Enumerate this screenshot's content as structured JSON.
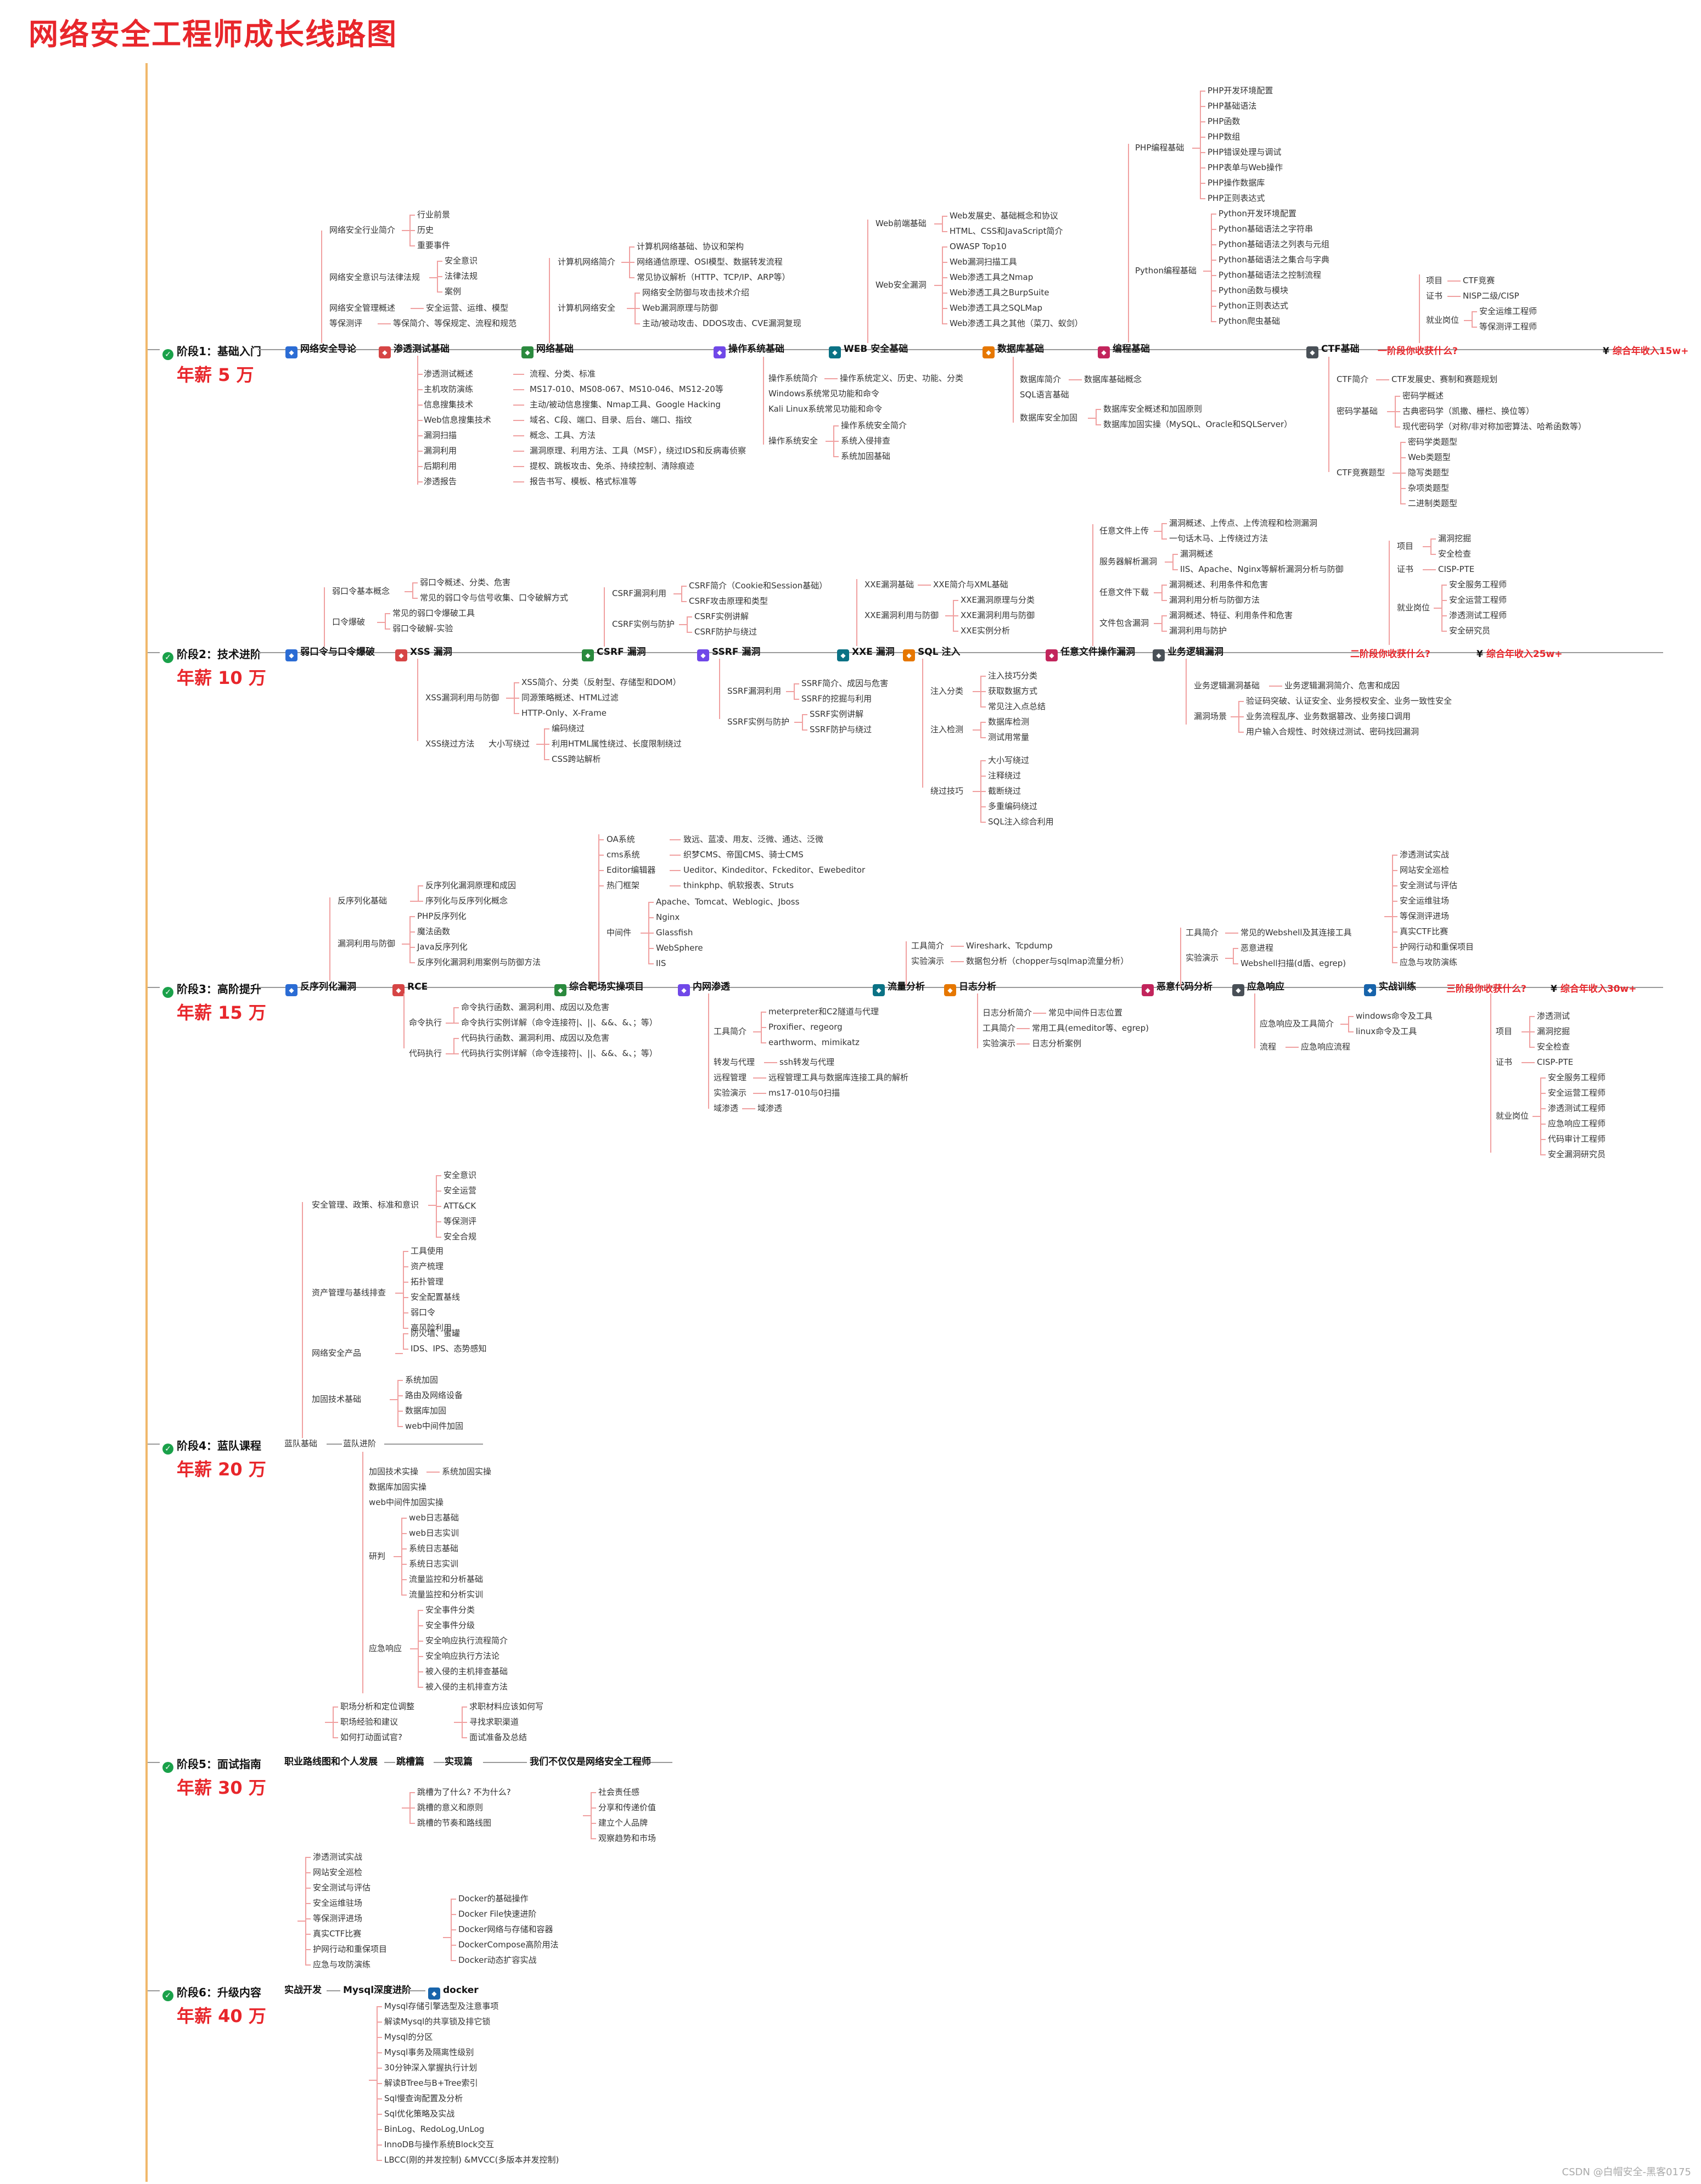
{
  "title": "网络安全工程师成长线路图",
  "watermark": "CSDN @白帽安全-黑客0175",
  "colors": {
    "accent": "#e8262b",
    "spine": "#f0b86b",
    "check": "#1aa14a"
  },
  "stages": [
    {
      "label": "阶段1：基础入门",
      "salary": "年薪 5 万"
    },
    {
      "label": "阶段2：技术进阶",
      "salary": "年薪 10 万"
    },
    {
      "label": "阶段3：高阶提升",
      "salary": "年薪 15 万"
    },
    {
      "label": "阶段4：蓝队课程",
      "salary": "年薪 20 万"
    },
    {
      "label": "阶段5：面试指南",
      "salary": "年薪 30 万"
    },
    {
      "label": "阶段6：升级内容",
      "salary": "年薪 40 万"
    }
  ],
  "s1": {
    "modules": [
      "网络安全导论",
      "渗透测试基础",
      "网络基础",
      "操作系统基础",
      "WEB 安全基础",
      "数据库基础",
      "编程基础",
      "CTF基础"
    ],
    "question": "一阶段你收获什么?",
    "pay": "综合年收入15w+",
    "intro": {
      "industry": "网络安全行业简介",
      "industry_items": [
        "行业前景",
        "历史",
        "重要事件"
      ],
      "law": "网络安全意识与法律法规",
      "law_items": [
        "安全意识",
        "法律法规",
        "案例"
      ],
      "mgmt": "网络安全管理概述",
      "mgmt_item": "安全运营、运维、模型",
      "level": "等保测评",
      "level_item": "等保简介、等保规定、流程和规范"
    },
    "net": {
      "a": "计算机网络简介",
      "a_items": [
        "计算机网络基础、协议和架构",
        "网络通信原理、OSI模型、数据转发流程",
        "常见协议解析（HTTP、TCP/IP、ARP等）"
      ],
      "b": "计算机网络安全",
      "b_items": [
        "网络安全防御与攻击技术介绍",
        "Web漏洞原理与防御",
        "主动/被动攻击、DDOS攻击、CVE漏洞复现"
      ]
    },
    "web": {
      "a": "Web前端基础",
      "a_items": [
        "Web发展史、基础概念和协议",
        "HTML、CSS和JavaScript简介"
      ],
      "b": "Web安全漏洞",
      "b_items": [
        "OWASP Top10",
        "Web漏洞扫描工具",
        "Web渗透工具之Nmap",
        "Web渗透工具之BurpSuite",
        "Web渗透工具之SQLMap",
        "Web渗透工具之其他（菜刀、蚁剑）"
      ]
    },
    "prog": {
      "php": "PHP编程基础",
      "php_items": [
        "PHP开发环境配置",
        "PHP基础语法",
        "PHP函数",
        "PHP数组",
        "PHP错误处理与调试",
        "PHP表单与Web操作",
        "PHP操作数据库",
        "PHP正则表达式"
      ],
      "py": "Python编程基础",
      "py_items": [
        "Python开发环境配置",
        "Python基础语法之字符串",
        "Python基础语法之列表与元组",
        "Python基础语法之集合与字典",
        "Python基础语法之控制流程",
        "Python函数与模块",
        "Python正则表达式",
        "Python爬虫基础"
      ]
    },
    "gain": {
      "project": "项目",
      "project_item": "CTF竞赛",
      "cert": "证书",
      "cert_item": "NISP二级/CISP",
      "job": "就业岗位",
      "job_items": [
        "安全运维工程师",
        "等保测评工程师"
      ]
    },
    "pentest": {
      "rows": [
        [
          "渗透测试概述",
          "流程、分类、标准"
        ],
        [
          "主机攻防演练",
          "MS17-010、MS08-067、MS10-046、MS12-20等"
        ],
        [
          "信息搜集技术",
          "主动/被动信息搜集、Nmap工具、Google Hacking"
        ],
        [
          "Web信息搜集技术",
          "域名、C段、端口、目录、后台、端口、指纹"
        ],
        [
          "漏洞扫描",
          "概念、工具、方法"
        ],
        [
          "漏洞利用",
          "漏洞原理、利用方法、工具（MSF），绕过IDS和反病毒侦察"
        ],
        [
          "后期利用",
          "提权、跳板攻击、免杀、持续控制、清除痕迹"
        ],
        [
          "渗透报告",
          "报告书写、模板、格式标准等"
        ]
      ]
    },
    "os": {
      "a": "操作系统简介",
      "a_item": "操作系统定义、历史、功能、分类",
      "b": "Windows系统常见功能和命令",
      "c": "Kali Linux系统常见功能和命令",
      "d": "操作系统安全",
      "d_items": [
        "操作系统安全简介",
        "系统入侵排查",
        "系统加固基础"
      ]
    },
    "db": {
      "a": "数据库简介",
      "a_item": "数据库基础概念",
      "b": "SQL语言基础",
      "c": "数据库安全加固",
      "c_items": [
        "数据库安全概述和加固原则",
        "数据库加固实操（MySQL、Oracle和SQLServer）"
      ]
    },
    "ctf": {
      "a": "CTF简介",
      "a_item": "CTF发展史、赛制和赛题规划",
      "b": "密码学基础",
      "b_items": [
        "密码学概述",
        "古典密码学（凯撒、栅栏、换位等）",
        "现代密码学（对称/非对称加密算法、哈希函数等）"
      ],
      "c": "CTF竞赛题型",
      "c_items": [
        "密码学类题型",
        "Web类题型",
        "隐写类题型",
        "杂项类题型",
        "二进制类题型"
      ]
    }
  },
  "s2": {
    "modules": [
      "弱口令与口令爆破",
      "XSS 漏洞",
      "CSRF 漏洞",
      "SSRF 漏洞",
      "XXE 漏洞",
      "SQL 注入",
      "任意文件操作漏洞",
      "业务逻辑漏洞"
    ],
    "question": "二阶段你收获什么?",
    "pay": "综合年收入25w+",
    "weak": {
      "a": "弱口令基本概念",
      "a_items": [
        "弱口令概述、分类、危害",
        "常见的弱口令与信号收集、口令破解方式"
      ],
      "b": "口令爆破",
      "b_items": [
        "常见的弱口令爆破工具",
        "弱口令破解-实验"
      ]
    },
    "xss": {
      "a": "XSS漏洞利用与防御",
      "a_items": [
        "XSS简介、分类（反射型、存储型和DOM）",
        "同源策略概述、HTML过滤",
        "HTTP-Only、X-Frame"
      ],
      "b": "XSS绕过方法",
      "b_mid": "大小写绕过",
      "b_items": [
        "编码绕过",
        "利用HTML属性绕过、长度限制绕过",
        "CSS跨站解析"
      ]
    },
    "csrf": {
      "a": "CSRF漏洞利用",
      "a_items": [
        "CSRF简介（Cookie和Session基础）",
        "CSRF攻击原理和类型"
      ],
      "b": "CSRF实例与防护",
      "b_items": [
        "CSRF实例讲解",
        "CSRF防护与绕过"
      ]
    },
    "ssrf": {
      "a": "SSRF漏洞利用",
      "a_items": [
        "SSRF简介、成因与危害",
        "SSRF的挖掘与利用"
      ],
      "b": "SSRF实例与防护",
      "b_items": [
        "SSRF实例讲解",
        "SSRF防护与绕过"
      ]
    },
    "xxe": {
      "a": "XXE漏洞基础",
      "a_item": "XXE简介与XML基础",
      "b": "XXE漏洞利用与防御",
      "b_items": [
        "XXE漏洞原理与分类",
        "XXE漏洞利用与防御",
        "XXE实例分析"
      ]
    },
    "sqli": {
      "a": "注入分类",
      "a_items": [
        "注入技巧分类",
        "获取数据方式",
        "常见注入点总结"
      ],
      "b": "注入检测",
      "b_items": [
        "数据库检测",
        "测试用常量"
      ],
      "c": "绕过技巧",
      "c_items": [
        "大小写绕过",
        "注释绕过",
        "截断绕过",
        "多重编码绕过",
        "SQL注入综合利用"
      ]
    },
    "file": {
      "a": "任意文件上传",
      "a_items": [
        "漏洞概述、上传点、上传流程和检测漏洞",
        "一句话木马、上传绕过方法"
      ],
      "b": "服务器解析漏洞",
      "b_items": [
        "漏洞概述",
        "IIS、Apache、Nginx等解析漏洞分析与防御"
      ],
      "c": "任意文件下载",
      "c_items": [
        "漏洞概述、利用条件和危害",
        "漏洞利用分析与防御方法"
      ],
      "d": "文件包含漏洞",
      "d_items": [
        "漏洞概述、特征、利用条件和危害",
        "漏洞利用与防护"
      ]
    },
    "logic": {
      "a": "业务逻辑漏洞基础",
      "a_item": "业务逻辑漏洞简介、危害和成因",
      "b": "漏洞场景",
      "b_items": [
        "验证码突破、认证安全、业务授权安全、业务一致性安全",
        "业务流程乱序、业务数据篡改、业务接口调用",
        "用户输入合规性、时效绕过测试、密码找回漏洞"
      ]
    },
    "gain": {
      "project": "项目",
      "project_items": [
        "漏洞挖掘",
        "安全检查"
      ],
      "cert": "证书",
      "cert_item": "CISP-PTE",
      "job": "就业岗位",
      "job_items": [
        "安全服务工程师",
        "安全运营工程师",
        "渗透测试工程师",
        "安全研究员"
      ]
    }
  },
  "s3": {
    "modules": [
      "反序列化漏洞",
      "RCE",
      "综合靶场实操项目",
      "内网渗透",
      "流量分析",
      "日志分析",
      "恶意代码分析",
      "应急响应",
      "实战训练"
    ],
    "question": "三阶段你收获什么?",
    "pay": "综合年收入30w+",
    "deser": {
      "a": "反序列化基础",
      "a_items": [
        "反序列化漏洞原理和成因",
        "序列化与反序列化概念"
      ],
      "b": "漏洞利用与防御",
      "b_items": [
        "PHP反序列化",
        "魔法函数",
        "Java反序列化",
        "反序列化漏洞利用案例与防御方法"
      ]
    },
    "rce": {
      "a": "命令执行",
      "a_items": [
        "命令执行函数、漏洞利用、成因以及危害",
        "命令执行实例详解（命令连接符|、||、&&、&、；等）"
      ],
      "b": "代码执行",
      "b_items": [
        "代码执行函数、漏洞利用、成因以及危害",
        "代码执行实例详解（命令连接符|、||、&&、&、；等）"
      ]
    },
    "range": {
      "rows": [
        [
          "OA系统",
          "致远、蓝凌、用友、泛微、通达、泛微"
        ],
        [
          "cms系统",
          "织梦CMS、帝国CMS、骑士CMS"
        ],
        [
          "Editor编辑器",
          "Ueditor、Kindeditor、Fckeditor、Ewebeditor"
        ],
        [
          "热门框架",
          "thinkphp、帆软报表、Struts"
        ]
      ],
      "mw": "中间件",
      "mw_items": [
        "Apache、Tomcat、Weblogic、Jboss",
        "Nginx",
        "Glassfish",
        "WebSphere",
        "IIS"
      ]
    },
    "intranet": {
      "a": "工具简介",
      "a_items": [
        "meterpreter和C2隧道与代理",
        "Proxifier、regeorg",
        "earthworm、mimikatz"
      ],
      "b": "转发与代理",
      "b_item": "ssh转发与代理",
      "c": "远程管理",
      "c_item": "远程管理工具与数据库连接工具的解析",
      "d": "实验演示",
      "d_item": "ms17-010与0扫描",
      "e": "域渗透",
      "e_item": "域渗透"
    },
    "traffic": {
      "a": "工具简介",
      "a_item": "Wireshark、Tcpdump",
      "b": "实验演示",
      "b_item": "数据包分析（chopper与sqlmap流量分析）"
    },
    "log": {
      "a": "日志分析简介",
      "a_item": "常见中间件日志位置",
      "b": "工具简介",
      "b_item": "常用工具(emeditor等、egrep)",
      "c": "实验演示",
      "c_item": "日志分析案例"
    },
    "malware": {
      "a": "工具简介",
      "a_item": "常见的Webshell及其连接工具",
      "b": "实验演示",
      "b_items": [
        "恶意进程",
        "Webshell扫描(d盾、egrep)"
      ]
    },
    "ir": {
      "a": "应急响应及工具简介",
      "a_items": [
        "windows命令及工具",
        "linux命令及工具"
      ],
      "b": "流程",
      "b_item": "应急响应流程"
    },
    "train": {
      "items": [
        "渗透测试实战",
        "网站安全巡检",
        "安全测试与评估",
        "安全运维驻场",
        "等保测评进场",
        "真实CTF比赛",
        "护网行动和重保项目",
        "应急与攻防演练"
      ]
    },
    "gain": {
      "project": "项目",
      "project_items": [
        "渗透测试",
        "漏洞挖掘",
        "安全检查"
      ],
      "cert": "证书",
      "cert_item": "CISP-PTE",
      "job": "就业岗位",
      "job_items": [
        "安全服务工程师",
        "安全运营工程师",
        "渗透测试工程师",
        "应急响应工程师",
        "代码审计工程师",
        "安全漏洞研究员"
      ]
    }
  },
  "s4": {
    "root": "蓝队基础",
    "root2": "蓝队进阶",
    "basics": [
      {
        "label": "安全管理、政策、标准和意识",
        "items": [
          "安全意识",
          "安全运营",
          "ATT&CK",
          "等保测评",
          "安全合规"
        ]
      },
      {
        "label": "资产管理与基线排查",
        "items": [
          "工具使用",
          "资产梳理",
          "拓扑管理",
          "安全配置基线",
          "弱口令",
          "高风险利用"
        ]
      },
      {
        "label": "网络安全产品",
        "items": [
          "防火墙、蜜罐",
          "IDS、IPS、态势感知"
        ]
      },
      {
        "label": "加固技术基础",
        "items": [
          "系统加固",
          "路由及网络设备",
          "数据库加固",
          "web中间件加固"
        ]
      }
    ],
    "adv": {
      "a": "加固技术实操",
      "a_item": "系统加固实操",
      "b": "数据库加固实操",
      "c": "web中间件加固实操",
      "d": "研判",
      "d_items": [
        "web日志基础",
        "web日志实训",
        "系统日志基础",
        "系统日志实训",
        "流量监控和分析基础",
        "流量监控和分析实训"
      ],
      "e": "应急响应",
      "e_items": [
        "安全事件分类",
        "安全事件分级",
        "安全响应执行流程简介",
        "安全响应执行方法论",
        "被入侵的主机排查基础",
        "被入侵的主机排查方法"
      ]
    }
  },
  "s5": {
    "root": "职业路线图和个人发展",
    "root_items": [
      "职场分析和定位调整",
      "职场经验和建议",
      "如何打动面试官?"
    ],
    "b": "跳槽篇",
    "b_items": [
      "跳槽为了什么? 不为什么?",
      "跳槽的意义和原则",
      "跳槽的节奏和路线图"
    ],
    "c": "实现篇",
    "c_items": [
      "求职材料应该如何写",
      "寻找求职渠道",
      "面试准备及总结"
    ],
    "d": "我们不仅仅是网络安全工程师",
    "d_items": [
      "社会责任感",
      "分享和传递价值",
      "建立个人品牌",
      "观察趋势和市场"
    ]
  },
  "s6": {
    "root": "实战开发",
    "root_items": [
      "渗透测试实战",
      "网站安全巡检",
      "安全测试与评估",
      "安全运维驻场",
      "等保测评进场",
      "真实CTF比赛",
      "护网行动和重保项目",
      "应急与攻防演练"
    ],
    "b": "Mysql深度进阶",
    "b_items": [
      "Mysql存储引擎选型及注意事项",
      "解读Mysql的共享锁及排它锁",
      "Mysql的分区",
      "Mysql事务及隔离性级别",
      "30分钟深入掌握执行计划",
      "解读BTree与B+Tree索引",
      "Sql慢查询配置及分析",
      "Sql优化策略及实战",
      "BinLog、RedoLog,UnLog",
      "InnoDB与操作系统Block交互",
      "LBCC(刚的并发控制) &MVCC(多版本并发控制)"
    ],
    "c": "docker",
    "c_items": [
      "Docker的基础操作",
      "Docker File快速进阶",
      "Docker网络与存储和容器",
      "DockerCompose高阶用法",
      "Docker动态扩容实战"
    ]
  }
}
